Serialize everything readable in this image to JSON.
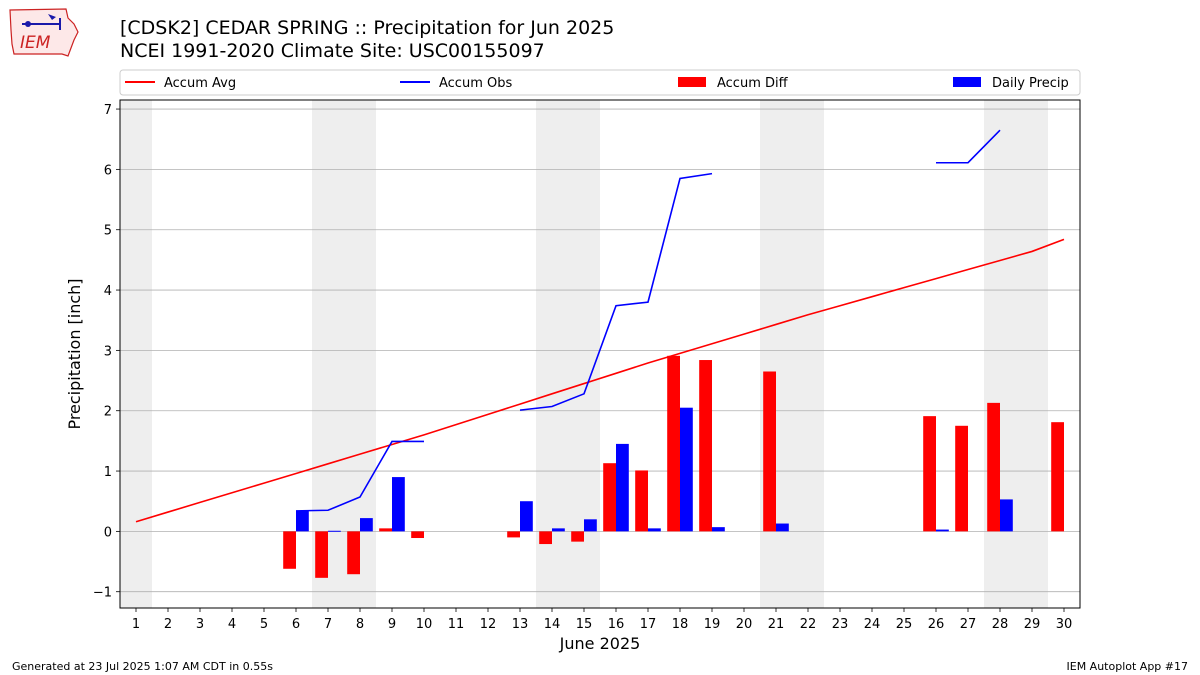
{
  "header": {
    "logo_text": "IEM",
    "title_line1": "[CDSK2] CEDAR SPRING :: Precipitation for Jun 2025",
    "title_line2": "NCEI 1991-2020 Climate Site: USC00155097"
  },
  "footer": {
    "left": "Generated at 23 Jul 2025 1:07 AM CDT in 0.55s",
    "right": "IEM Autoplot App #17"
  },
  "chart_data": {
    "type": "bar",
    "xlabel": "June 2025",
    "ylabel": "Precipitation [inch]",
    "ylim": [
      -1.27,
      7.15
    ],
    "xlim": [
      0.5,
      30.5
    ],
    "x": [
      1,
      2,
      3,
      4,
      5,
      6,
      7,
      8,
      9,
      10,
      11,
      12,
      13,
      14,
      15,
      16,
      17,
      18,
      19,
      20,
      21,
      22,
      23,
      24,
      25,
      26,
      27,
      28,
      29,
      30
    ],
    "y_ticks": [
      -1,
      0,
      1,
      2,
      3,
      4,
      5,
      6,
      7
    ],
    "grid": "horizontal",
    "weekend_shading": [
      [
        0.5,
        1.5
      ],
      [
        6.5,
        8.5
      ],
      [
        13.5,
        15.5
      ],
      [
        20.5,
        22.5
      ],
      [
        27.5,
        29.5
      ]
    ],
    "legend_position": "top, outside plot",
    "colors": {
      "accum_avg": "#ff0000",
      "accum_obs": "#0000ff",
      "accum_diff": "#ff0000",
      "daily_precip": "#0000ff",
      "shade": "#eeeeee"
    },
    "series": [
      {
        "name": "Accum Avg",
        "type": "line",
        "values": [
          0.16,
          0.32,
          0.48,
          0.64,
          0.8,
          0.96,
          1.12,
          1.28,
          1.44,
          1.6,
          1.77,
          1.94,
          2.11,
          2.28,
          2.45,
          2.62,
          2.79,
          2.95,
          3.11,
          3.27,
          3.43,
          3.59,
          3.74,
          3.89,
          4.04,
          4.19,
          4.34,
          4.49,
          4.64,
          4.84
        ]
      },
      {
        "name": "Accum Obs",
        "type": "line",
        "values": [
          null,
          null,
          null,
          null,
          null,
          0.34,
          0.35,
          0.57,
          1.49,
          1.49,
          null,
          null,
          2.01,
          2.07,
          2.28,
          3.74,
          3.8,
          5.85,
          5.93,
          null,
          null,
          null,
          null,
          null,
          null,
          6.11,
          6.11,
          6.65,
          null,
          null
        ]
      },
      {
        "name": "Accum Diff",
        "type": "bar",
        "values": [
          null,
          null,
          null,
          null,
          null,
          -0.62,
          -0.77,
          -0.71,
          0.05,
          -0.11,
          null,
          null,
          -0.1,
          -0.21,
          -0.17,
          1.13,
          1.01,
          2.91,
          2.84,
          null,
          2.65,
          null,
          null,
          null,
          null,
          1.91,
          1.75,
          2.13,
          null,
          1.81
        ]
      },
      {
        "name": "Daily Precip",
        "type": "bar",
        "values": [
          null,
          null,
          null,
          null,
          null,
          0.34,
          0.01,
          0.22,
          0.9,
          null,
          null,
          null,
          0.5,
          0.05,
          0.2,
          1.45,
          0.05,
          2.05,
          0.07,
          null,
          0.13,
          null,
          null,
          null,
          null,
          0.03,
          null,
          0.53,
          null,
          null
        ]
      }
    ]
  }
}
